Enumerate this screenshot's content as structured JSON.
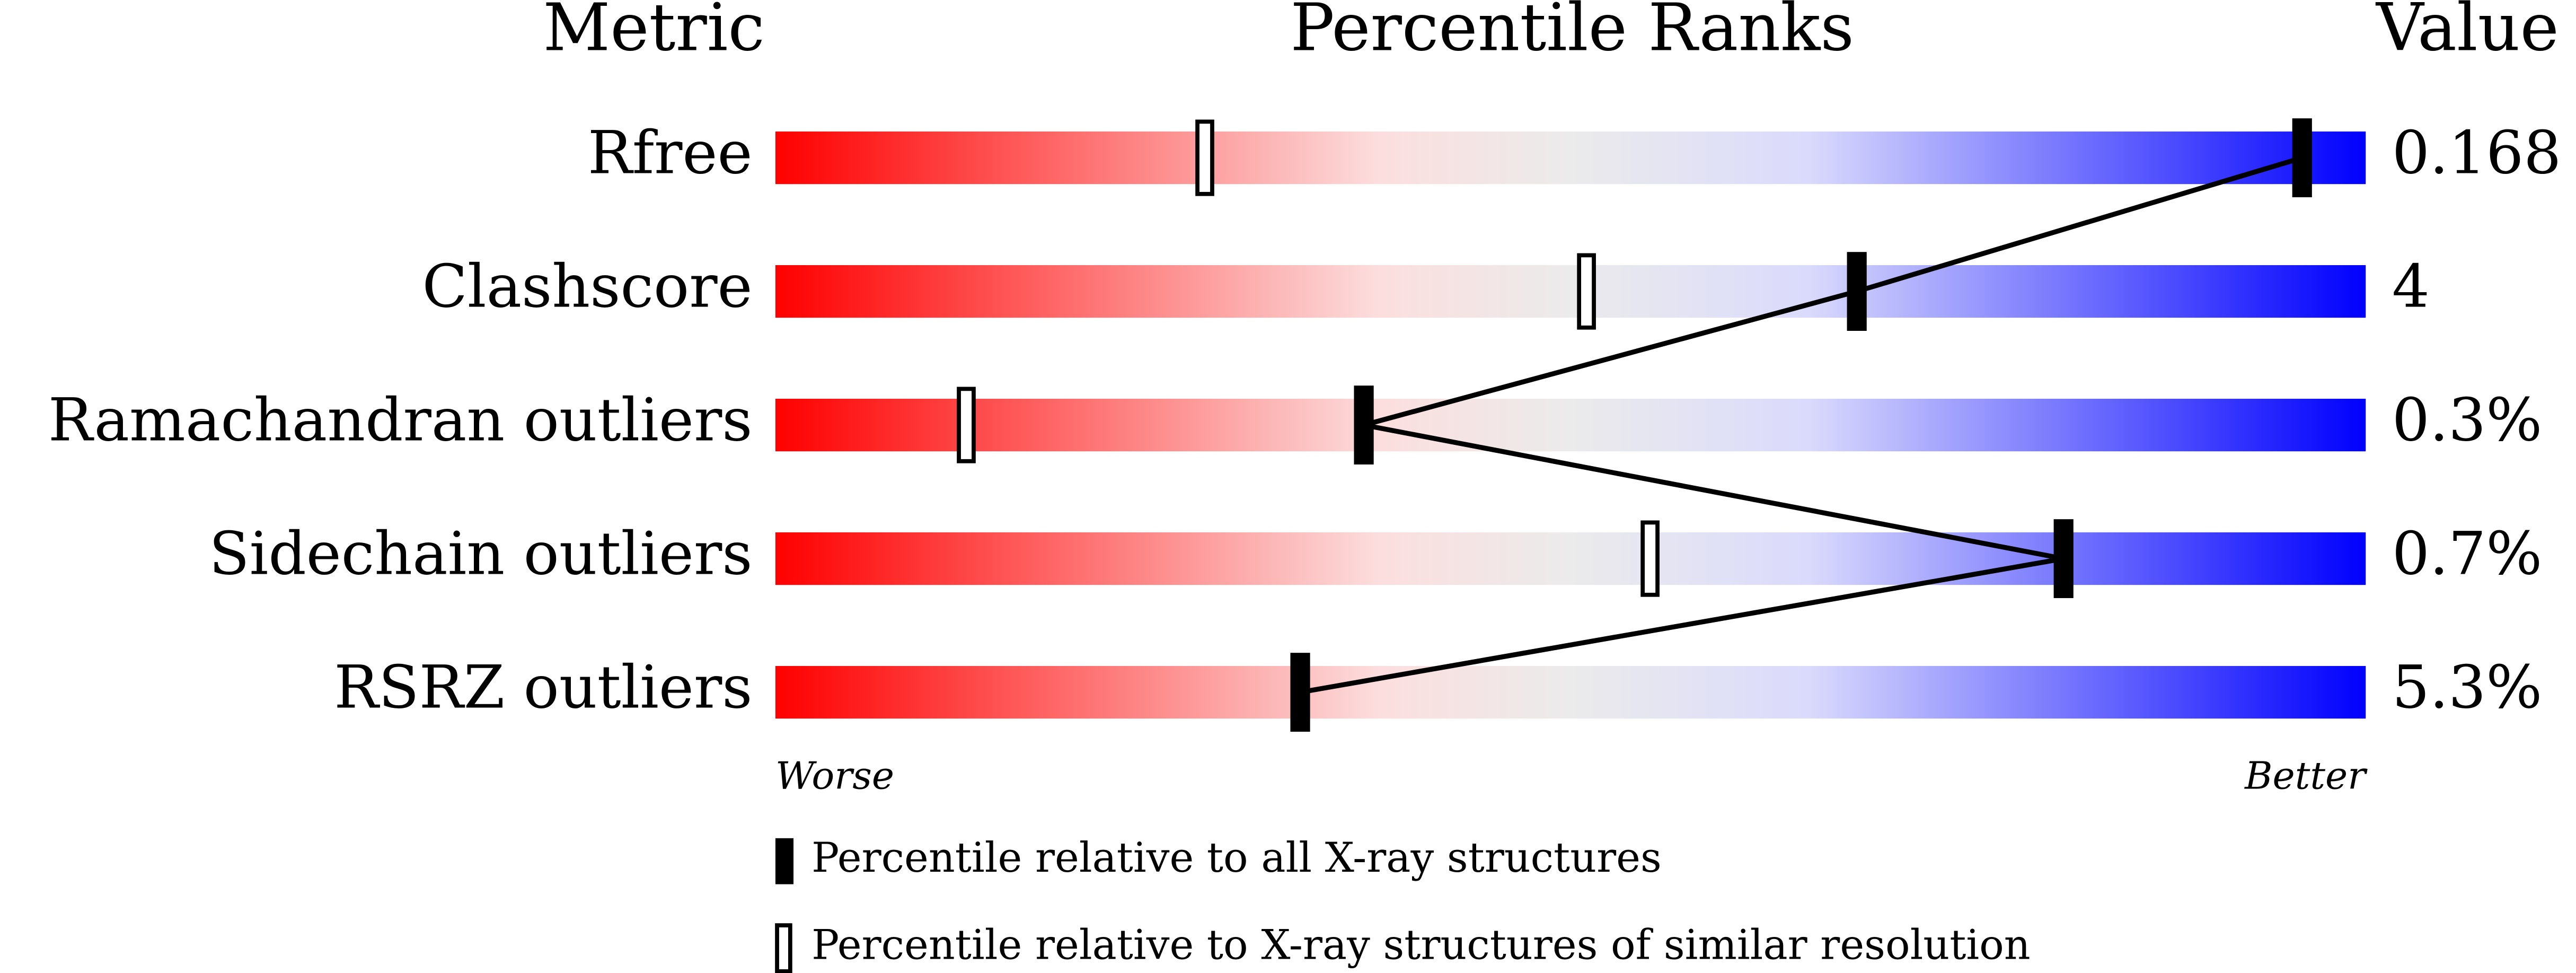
{
  "chart_data": {
    "type": "percentile_ranks",
    "headers": {
      "metric": "Metric",
      "ranks": "Percentile Ranks",
      "value": "Value"
    },
    "categories": [
      "Rfree",
      "Clashscore",
      "Ramachandran outliers",
      "Sidechain outliers",
      "RSRZ outliers"
    ],
    "metric_values": [
      "0.168",
      "4",
      "0.3%",
      "0.7%",
      "5.3%"
    ],
    "series": [
      {
        "name": "Percentile relative to all X-ray structures",
        "color": "#000000",
        "values": [
          96,
          68,
          37,
          81,
          33
        ]
      },
      {
        "name": "Percentile relative to X-ray structures of similar resolution",
        "color": "#ffffff",
        "values": [
          27,
          51,
          12,
          55,
          null
        ]
      }
    ],
    "xlim": [
      0,
      100
    ],
    "axis_labels": {
      "low": "Worse",
      "high": "Better"
    }
  }
}
